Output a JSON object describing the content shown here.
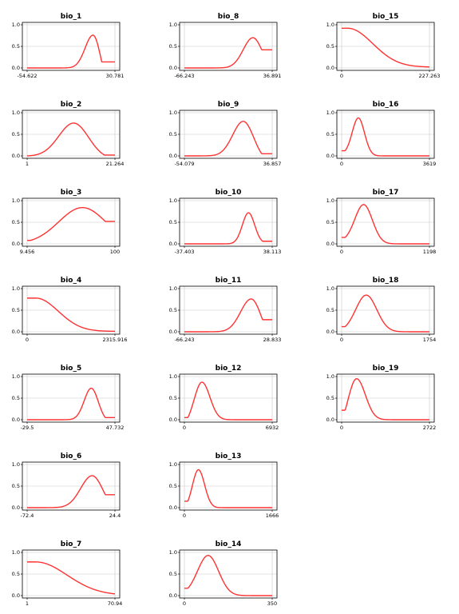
{
  "chart_data": [
    {
      "type": "line",
      "title": "bio_1",
      "x_tick_labels": [
        "-54.622",
        "30.781"
      ],
      "y_ticks": [
        "0.0",
        "0.5",
        "1.0"
      ],
      "ylim": [
        0,
        1
      ],
      "shape": {
        "kind": "peak",
        "start": 0.0,
        "peak": 0.76,
        "end": 0.14,
        "mu": 0.75,
        "sigma": 0.09,
        "flat_end": 0.85
      }
    },
    {
      "type": "line",
      "title": "bio_8",
      "x_tick_labels": [
        "-66.243",
        "36.891"
      ],
      "y_ticks": [
        "0.0",
        "0.5",
        "1.0"
      ],
      "ylim": [
        0,
        1
      ],
      "shape": {
        "kind": "peak",
        "start": 0.0,
        "peak": 0.7,
        "end": 0.42,
        "mu": 0.78,
        "sigma": 0.11,
        "flat_end": 0.88
      }
    },
    {
      "type": "line",
      "title": "bio_15",
      "x_tick_labels": [
        "0",
        "227.263"
      ],
      "y_ticks": [
        "0.0",
        "0.5",
        "1.0"
      ],
      "ylim": [
        0,
        1
      ],
      "shape": {
        "kind": "decay",
        "start": 0.92,
        "end": 0.02,
        "flat_until": 0.07,
        "scale": 0.42
      }
    },
    {
      "type": "line",
      "title": "bio_2",
      "x_tick_labels": [
        "1",
        "21.264"
      ],
      "y_ticks": [
        "0.0",
        "0.5",
        "1.0"
      ],
      "ylim": [
        0,
        1
      ],
      "shape": {
        "kind": "peak",
        "start": 0.0,
        "peak": 0.76,
        "end": 0.02,
        "mu": 0.53,
        "sigma": 0.17,
        "flat_end": 0.88
      }
    },
    {
      "type": "line",
      "title": "bio_9",
      "x_tick_labels": [
        "-54.079",
        "36.857"
      ],
      "y_ticks": [
        "0.0",
        "0.5",
        "1.0"
      ],
      "ylim": [
        0,
        1
      ],
      "shape": {
        "kind": "peak",
        "start": 0.0,
        "peak": 0.8,
        "end": 0.05,
        "mu": 0.67,
        "sigma": 0.12,
        "flat_end": 0.88
      }
    },
    {
      "type": "line",
      "title": "bio_16",
      "x_tick_labels": [
        "0",
        "3619"
      ],
      "y_ticks": [
        "0.0",
        "0.5",
        "1.0"
      ],
      "ylim": [
        0,
        1
      ],
      "shape": {
        "kind": "peak",
        "start": 0.12,
        "peak": 0.88,
        "end": 0.0,
        "mu": 0.19,
        "sigma": 0.07,
        "flat_start": 0.04
      }
    },
    {
      "type": "line",
      "title": "bio_3",
      "x_tick_labels": [
        "9.456",
        "100"
      ],
      "y_ticks": [
        "0.0",
        "0.5",
        "1.0"
      ],
      "ylim": [
        0,
        1
      ],
      "shape": {
        "kind": "peak",
        "start": 0.08,
        "peak": 0.84,
        "end": 0.52,
        "mu": 0.63,
        "sigma": 0.27,
        "flat_start": 0.04,
        "flat_end": 0.89
      }
    },
    {
      "type": "line",
      "title": "bio_10",
      "x_tick_labels": [
        "-37.403",
        "38.113"
      ],
      "y_ticks": [
        "0.0",
        "0.5",
        "1.0"
      ],
      "ylim": [
        0,
        1
      ],
      "shape": {
        "kind": "peak",
        "start": 0.0,
        "peak": 0.72,
        "end": 0.06,
        "mu": 0.73,
        "sigma": 0.07,
        "flat_end": 0.89
      }
    },
    {
      "type": "line",
      "title": "bio_17",
      "x_tick_labels": [
        "0",
        "1198"
      ],
      "y_ticks": [
        "0.0",
        "0.5",
        "1.0"
      ],
      "ylim": [
        0,
        1
      ],
      "shape": {
        "kind": "peak",
        "start": 0.15,
        "peak": 0.91,
        "end": 0.0,
        "mu": 0.25,
        "sigma": 0.1,
        "flat_start": 0.04
      }
    },
    {
      "type": "line",
      "title": "bio_4",
      "x_tick_labels": [
        "0",
        "2315.916"
      ],
      "y_ticks": [
        "0.0",
        "0.5",
        "1.0"
      ],
      "ylim": [
        0,
        1
      ],
      "shape": {
        "kind": "decay",
        "start": 0.78,
        "end": 0.01,
        "flat_until": 0.1,
        "scale": 0.36,
        "sigmoid": true
      }
    },
    {
      "type": "line",
      "title": "bio_11",
      "x_tick_labels": [
        "-66.243",
        "28.833"
      ],
      "y_ticks": [
        "0.0",
        "0.5",
        "1.0"
      ],
      "ylim": [
        0,
        1
      ],
      "shape": {
        "kind": "peak",
        "start": 0.0,
        "peak": 0.76,
        "end": 0.28,
        "mu": 0.76,
        "sigma": 0.12,
        "flat_end": 0.89
      }
    },
    {
      "type": "line",
      "title": "bio_18",
      "x_tick_labels": [
        "0",
        "1754"
      ],
      "y_ticks": [
        "0.0",
        "0.5",
        "1.0"
      ],
      "ylim": [
        0,
        1
      ],
      "shape": {
        "kind": "peak",
        "start": 0.12,
        "peak": 0.85,
        "end": 0.0,
        "mu": 0.28,
        "sigma": 0.12,
        "flat_start": 0.04
      }
    },
    {
      "type": "line",
      "title": "bio_5",
      "x_tick_labels": [
        "-29.5",
        "47.732"
      ],
      "y_ticks": [
        "0.0",
        "0.5",
        "1.0"
      ],
      "ylim": [
        0,
        1
      ],
      "shape": {
        "kind": "peak",
        "start": 0.0,
        "peak": 0.73,
        "end": 0.05,
        "mu": 0.73,
        "sigma": 0.08,
        "flat_end": 0.89
      }
    },
    {
      "type": "line",
      "title": "bio_12",
      "x_tick_labels": [
        "0",
        "6932"
      ],
      "y_ticks": [
        "0.0",
        "0.5",
        "1.0"
      ],
      "ylim": [
        0,
        1
      ],
      "shape": {
        "kind": "peak",
        "start": 0.05,
        "peak": 0.87,
        "end": 0.0,
        "mu": 0.2,
        "sigma": 0.09,
        "flat_start": 0.04
      }
    },
    {
      "type": "line",
      "title": "bio_19",
      "x_tick_labels": [
        "0",
        "2722"
      ],
      "y_ticks": [
        "0.0",
        "0.5",
        "1.0"
      ],
      "ylim": [
        0,
        1
      ],
      "shape": {
        "kind": "peak",
        "start": 0.22,
        "peak": 0.95,
        "end": 0.0,
        "mu": 0.17,
        "sigma": 0.1,
        "flat_start": 0.04
      }
    },
    {
      "type": "line",
      "title": "bio_6",
      "x_tick_labels": [
        "-72.4",
        "24.4"
      ],
      "y_ticks": [
        "0.0",
        "0.5",
        "1.0"
      ],
      "ylim": [
        0,
        1
      ],
      "shape": {
        "kind": "peak",
        "start": 0.0,
        "peak": 0.74,
        "end": 0.3,
        "mu": 0.74,
        "sigma": 0.13,
        "flat_end": 0.89
      }
    },
    {
      "type": "line",
      "title": "bio_13",
      "x_tick_labels": [
        "0",
        "1666"
      ],
      "y_ticks": [
        "0.0",
        "0.5",
        "1.0"
      ],
      "ylim": [
        0,
        1
      ],
      "shape": {
        "kind": "peak",
        "start": 0.15,
        "peak": 0.88,
        "end": 0.0,
        "mu": 0.16,
        "sigma": 0.07,
        "flat_start": 0.04
      }
    },
    {
      "type": "line",
      "title": "bio_7",
      "x_tick_labels": [
        "1",
        "70.94"
      ],
      "y_ticks": [
        "0.0",
        "0.5",
        "1.0"
      ],
      "ylim": [
        0,
        1
      ],
      "shape": {
        "kind": "decay",
        "start": 0.78,
        "end": 0.01,
        "flat_until": 0.1,
        "scale": 0.5,
        "sigmoid": true
      }
    },
    {
      "type": "line",
      "title": "bio_14",
      "x_tick_labels": [
        "0",
        "350"
      ],
      "y_ticks": [
        "0.0",
        "0.5",
        "1.0"
      ],
      "ylim": [
        0,
        1
      ],
      "shape": {
        "kind": "peak",
        "start": 0.17,
        "peak": 0.93,
        "end": 0.0,
        "mu": 0.27,
        "sigma": 0.12,
        "flat_start": 0.04
      }
    }
  ],
  "colors": {
    "curve": "#ff3333",
    "grid": "#c8c8c8",
    "axis": "#000000"
  }
}
